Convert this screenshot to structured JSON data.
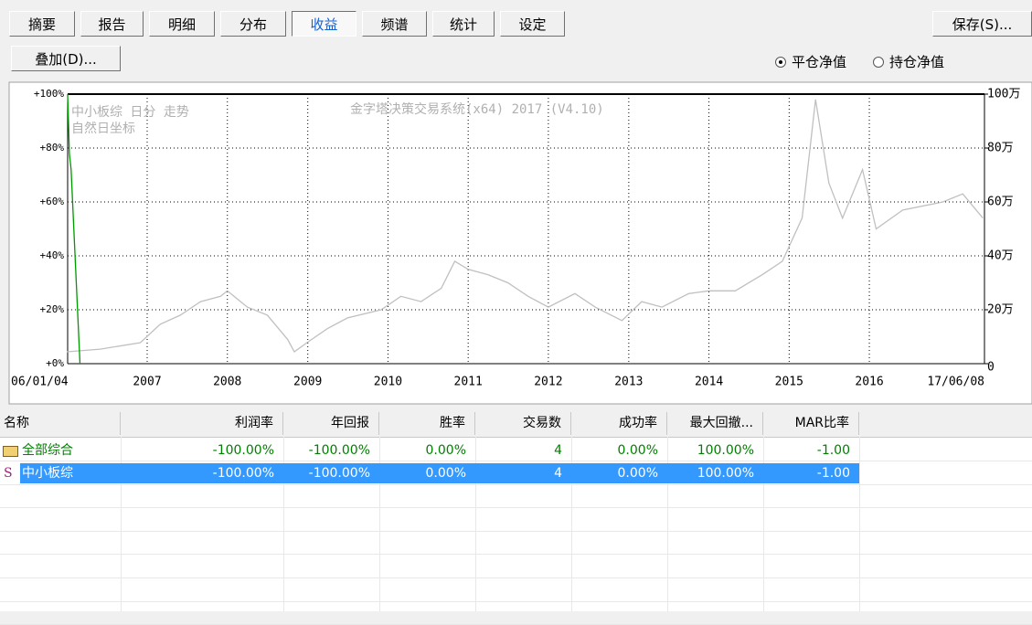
{
  "toolbar": {
    "tabs": [
      "摘要",
      "报告",
      "明细",
      "分布",
      "收益",
      "频谱",
      "统计",
      "设定"
    ],
    "active_tab": 4,
    "save_button": "保存(S)...",
    "overlay_button": "叠加(D)...",
    "radio_options": [
      "平仓净值",
      "持仓净值"
    ],
    "radio_selected": 0
  },
  "chart_data": {
    "type": "line",
    "annotations": [
      "中小板综 日分 走势",
      "自然日坐标",
      "金字塔决策交易系统(x64) 2017 (V4.10)"
    ],
    "xlim": [
      "2006-01-04",
      "2017-06-08"
    ],
    "xticks": [
      {
        "value": "2006-01-04",
        "label": "06/01/04"
      },
      {
        "value": "2007-01-01",
        "label": "2007"
      },
      {
        "value": "2008-01-01",
        "label": "2008"
      },
      {
        "value": "2009-01-01",
        "label": "2009"
      },
      {
        "value": "2010-01-01",
        "label": "2010"
      },
      {
        "value": "2011-01-01",
        "label": "2011"
      },
      {
        "value": "2012-01-01",
        "label": "2012"
      },
      {
        "value": "2013-01-01",
        "label": "2013"
      },
      {
        "value": "2014-01-01",
        "label": "2014"
      },
      {
        "value": "2015-01-01",
        "label": "2015"
      },
      {
        "value": "2016-01-01",
        "label": "2016"
      },
      {
        "value": "2017-06-08",
        "label": "17/06/08"
      }
    ],
    "ylim": [
      0,
      100
    ],
    "yticks": [
      {
        "value": 0,
        "label": "+0%"
      },
      {
        "value": 20,
        "label": "+20%"
      },
      {
        "value": 40,
        "label": "+40%"
      },
      {
        "value": 60,
        "label": "+60%"
      },
      {
        "value": 80,
        "label": "+80%"
      },
      {
        "value": 100,
        "label": "+100%"
      }
    ],
    "y2lim": [
      0,
      100
    ],
    "y2ticks": [
      0,
      {
        "value": 20,
        "label": "20万"
      },
      {
        "value": 40,
        "label": "40万"
      },
      {
        "value": 60,
        "label": "60万"
      },
      {
        "value": 80,
        "label": "80万"
      },
      {
        "value": 100,
        "label": "100万"
      }
    ],
    "grid": true,
    "series": [
      {
        "color": "#c0c0c0",
        "axis": "y2",
        "x": [
          "2006-01",
          "2006-06",
          "2006-12",
          "2007-03",
          "2007-06",
          "2007-09",
          "2007-12",
          "2008-01",
          "2008-04",
          "2008-07",
          "2008-10",
          "2008-11",
          "2009-01",
          "2009-04",
          "2009-07",
          "2009-12",
          "2010-03",
          "2010-06",
          "2010-09",
          "2010-11",
          "2011-01",
          "2011-04",
          "2011-07",
          "2011-10",
          "2012-01",
          "2012-05",
          "2012-08",
          "2012-12",
          "2013-03",
          "2013-06",
          "2013-10",
          "2014-01",
          "2014-05",
          "2014-09",
          "2014-12",
          "2015-03",
          "2015-05",
          "2015-07",
          "2015-09",
          "2015-12",
          "2016-02",
          "2016-06",
          "2016-12",
          "2017-03",
          "2017-06"
        ],
        "values": [
          4.4,
          5.4,
          7.8,
          14.6,
          18,
          23,
          25,
          27,
          21,
          18,
          9,
          4.4,
          8,
          13,
          17,
          20,
          25,
          23,
          28,
          38,
          35,
          33,
          30,
          25,
          21,
          26,
          21,
          16,
          23,
          21,
          26,
          27,
          27,
          33,
          38,
          54,
          98,
          67,
          54,
          72,
          50,
          57,
          60,
          63,
          54
        ]
      },
      {
        "color": "#009900",
        "axis": "y",
        "x": [
          "2006-01-04",
          "2006-01-12",
          "2006-01-20",
          "2006-03-01"
        ],
        "values": [
          100,
          78,
          72,
          0
        ]
      }
    ]
  },
  "table": {
    "headers": [
      "名称",
      "利润率",
      "年回报",
      "胜率",
      "交易数",
      "成功率",
      "最大回撤...",
      "MAR比率"
    ],
    "rows": [
      {
        "marker": null,
        "cells": [
          "全部综合",
          "-100.00%",
          "-100.00%",
          "0.00%",
          "4",
          "0.00%",
          "100.00%",
          "-1.00"
        ]
      },
      {
        "marker": "S",
        "cells": [
          "中小板综",
          "-100.00%",
          "-100.00%",
          "0.00%",
          "4",
          "0.00%",
          "100.00%",
          "-1.00"
        ]
      }
    ]
  }
}
